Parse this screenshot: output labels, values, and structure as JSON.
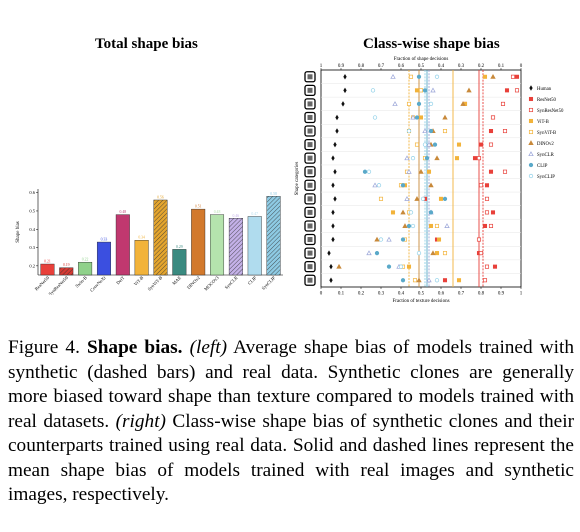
{
  "left_panel": {
    "title": "Total shape bias"
  },
  "right_panel": {
    "title": "Class-wise shape bias"
  },
  "caption": {
    "figure_label": "Figure 4.",
    "heading": "Shape bias.",
    "left_tag": "(left)",
    "left_text": "Average shape bias of models trained with synthetic (dashed bars) and real data. Synthetic clones are generally more biased toward shape than texture compared to models trained with real datasets.",
    "right_tag": "(right)",
    "right_text": "Class-wise shape bias of synthetic clones and their counterparts trained using real data. Solid and dashed lines represent the mean shape bias of models trained with real images and synthetic images, respectively."
  },
  "chart_data": [
    {
      "type": "bar",
      "title": "Total shape bias",
      "ylabel": "Shape bias",
      "ylim": [
        0.15,
        0.62
      ],
      "yticks": [
        "0.2",
        "0.3",
        "0.4",
        "0.5",
        "0.6"
      ],
      "categories": [
        "ResNet50",
        "SynResNet50",
        "Swin-B",
        "ConvNeXt",
        "DeiT",
        "ViT-B",
        "SynViT-B",
        "MAE",
        "DINOv2",
        "MOCOv3",
        "SynCLR",
        "CLIP",
        "SynCLIP"
      ],
      "values": [
        0.21,
        0.19,
        0.22,
        0.33,
        0.48,
        0.34,
        0.56,
        0.29,
        0.51,
        0.48,
        0.46,
        0.47,
        0.58
      ],
      "value_labels": [
        "0.21",
        "0.19",
        "0.22",
        "0.33",
        "0.48",
        "0.34",
        "0.56",
        "0.29",
        "0.51",
        "0.48",
        "0.46",
        "0.47",
        "0.58"
      ],
      "colors": [
        "#e8403a",
        "#d63a33",
        "#8fd18a",
        "#3b4fe0",
        "#c0386f",
        "#f2b33a",
        "#e4a52e",
        "#3a8a80",
        "#d2792c",
        "#b5e3ad",
        "#c4b1e8",
        "#b0dcee",
        "#8ecbe4"
      ],
      "synthetic": [
        false,
        true,
        false,
        false,
        false,
        false,
        true,
        false,
        false,
        false,
        true,
        false,
        true
      ],
      "grid": false
    },
    {
      "type": "scatter",
      "title": "Class-wise shape bias",
      "xlabel": "Fraction of texture decisions",
      "x2label": "Fraction of shape decisions",
      "ylabel": "Shape categories",
      "xlim": [
        0,
        1
      ],
      "xticks": [
        "0",
        "0.1",
        "0.2",
        "0.3",
        "0.4",
        "0.5",
        "0.6",
        "0.7",
        "0.8",
        "0.9",
        "1"
      ],
      "x2ticks": [
        "1",
        "0.9",
        "0.8",
        "0.7",
        "0.6",
        "0.5",
        "0.4",
        "0.3",
        "0.2",
        "0.1",
        "0"
      ],
      "categories": [
        "knife",
        "keyboard",
        "elephant",
        "bicycle",
        "airplane",
        "clock",
        "oven",
        "chair",
        "bear",
        "boat",
        "cat",
        "bottle",
        "truck",
        "car",
        "bird",
        "dog"
      ],
      "legend_position": "right",
      "series": [
        {
          "name": "Human",
          "marker": "diamond",
          "color": "#111111",
          "fill": true,
          "values": [
            0.12,
            0.12,
            0.11,
            0.08,
            0.08,
            0.07,
            0.06,
            0.07,
            0.06,
            0.07,
            0.06,
            0.06,
            0.06,
            0.04,
            0.05,
            0.05
          ]
        },
        {
          "name": "ResNet50",
          "marker": "square",
          "color": "#e8403a",
          "fill": true,
          "values": [
            0.98,
            0.93,
            0.72,
            0.86,
            0.85,
            0.8,
            0.77,
            0.85,
            0.83,
            0.52,
            0.86,
            0.82,
            0.58,
            0.79,
            0.87,
            0.62
          ]
        },
        {
          "name": "SynResNet50",
          "marker": "square",
          "color": "#e8403a",
          "fill": false,
          "values": [
            0.96,
            0.98,
            0.91,
            0.86,
            0.92,
            0.85,
            0.79,
            0.92,
            0.8,
            0.83,
            0.83,
            0.85,
            0.79,
            0.8,
            0.83,
            0.82
          ]
        },
        {
          "name": "ViT-B",
          "marker": "square",
          "color": "#f2b33a",
          "fill": true,
          "values": [
            0.82,
            0.48,
            0.72,
            0.5,
            0.44,
            0.69,
            0.68,
            0.54,
            0.42,
            0.6,
            0.36,
            0.55,
            0.59,
            0.58,
            0.44,
            0.69
          ]
        },
        {
          "name": "SynViT-B",
          "marker": "square",
          "color": "#f2b33a",
          "fill": false,
          "values": [
            0.45,
            0.5,
            0.44,
            0.46,
            0.62,
            0.48,
            0.52,
            0.43,
            0.4,
            0.3,
            0.44,
            0.58,
            0.42,
            0.62,
            0.41,
            0.47
          ]
        },
        {
          "name": "DINOv2",
          "marker": "triangle",
          "color": "#c8893a",
          "fill": true,
          "values": [
            0.86,
            0.74,
            0.71,
            0.62,
            0.56,
            0.55,
            0.58,
            0.5,
            0.55,
            0.48,
            0.41,
            0.42,
            0.28,
            0.56,
            0.09,
            0.49
          ]
        },
        {
          "name": "SynCLR",
          "marker": "triangle",
          "color": "#9aa5d8",
          "fill": false,
          "values": [
            0.36,
            0.56,
            0.37,
            0.46,
            0.52,
            0.54,
            0.43,
            0.44,
            0.27,
            0.43,
            0.55,
            0.63,
            0.34,
            0.24,
            0.39,
            0.54
          ]
        },
        {
          "name": "CLIP",
          "marker": "circle",
          "color": "#5aa9c9",
          "fill": true,
          "values": [
            0.49,
            0.52,
            0.49,
            0.48,
            0.55,
            0.57,
            0.53,
            0.22,
            0.41,
            0.62,
            0.55,
            0.44,
            0.41,
            0.28,
            0.34,
            0.41
          ]
        },
        {
          "name": "SynCLIP",
          "marker": "circle",
          "color": "#8fd0e8",
          "fill": false,
          "values": [
            0.58,
            0.26,
            0.55,
            0.27,
            0.44,
            0.52,
            0.46,
            0.24,
            0.29,
            0.51,
            0.45,
            0.46,
            0.3,
            0.49,
            0.4,
            0.58
          ]
        }
      ],
      "mean_lines": [
        {
          "model": "ResNet50",
          "style": "solid",
          "color": "#e8403a",
          "value": 0.79
        },
        {
          "model": "SynResNet50",
          "style": "dashed",
          "color": "#e8403a",
          "value": 0.81
        },
        {
          "model": "ViT-B",
          "style": "solid",
          "color": "#f2b33a",
          "value": 0.66
        },
        {
          "model": "SynViT-B",
          "style": "dashed",
          "color": "#f2b33a",
          "value": 0.44
        },
        {
          "model": "DINOv2",
          "style": "solid",
          "color": "#c8893a",
          "value": 0.49
        },
        {
          "model": "SynCLR",
          "style": "dashed",
          "color": "#9aa5d8",
          "value": 0.54
        },
        {
          "model": "CLIP",
          "style": "solid",
          "color": "#5aa9c9",
          "value": 0.53
        },
        {
          "model": "SynCLIP",
          "style": "dashed",
          "color": "#8fd0e8",
          "value": 0.52
        }
      ]
    }
  ]
}
